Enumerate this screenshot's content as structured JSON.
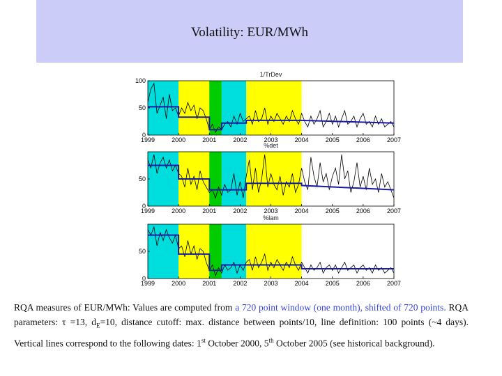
{
  "slide": {
    "title": "Volatility: EUR/MWh"
  },
  "chart_data": [
    {
      "type": "line",
      "title": "1/TrDev",
      "x_ticks": [
        "1999",
        "2000",
        "2001",
        "2002",
        "2003",
        "2004",
        "2005",
        "2006",
        "2007"
      ],
      "xlim": [
        1999,
        2007
      ],
      "ylim": [
        0,
        100
      ],
      "y_ticks": [
        "0",
        "50",
        "100"
      ],
      "periods": [
        {
          "start": 1999.0,
          "end": 2000.0,
          "color": "#00dddd"
        },
        {
          "start": 2000.0,
          "end": 2001.0,
          "color": "#ffff00"
        },
        {
          "start": 2001.0,
          "end": 2001.4,
          "color": "#00cc00"
        },
        {
          "start": 2001.4,
          "end": 2002.2,
          "color": "#00dddd"
        },
        {
          "start": 2002.2,
          "end": 2004.0,
          "color": "#ffff00"
        }
      ],
      "series": [
        {
          "name": "volatility",
          "x": [
            1999.0,
            1999.1,
            1999.2,
            1999.3,
            1999.4,
            1999.5,
            1999.6,
            1999.7,
            1999.8,
            1999.9,
            2000.0,
            2000.1,
            2000.2,
            2000.3,
            2000.4,
            2000.5,
            2000.6,
            2000.7,
            2000.8,
            2000.9,
            2001.0,
            2001.1,
            2001.2,
            2001.3,
            2001.4,
            2001.5,
            2001.6,
            2001.7,
            2001.8,
            2001.9,
            2002.0,
            2002.1,
            2002.2,
            2002.3,
            2002.4,
            2002.5,
            2002.6,
            2002.7,
            2002.8,
            2002.9,
            2003.0,
            2003.1,
            2003.2,
            2003.3,
            2003.4,
            2003.5,
            2003.6,
            2003.7,
            2003.8,
            2003.9,
            2004.0,
            2004.1,
            2004.2,
            2004.3,
            2004.4,
            2004.5,
            2004.6,
            2004.7,
            2004.8,
            2004.9,
            2005.0,
            2005.1,
            2005.2,
            2005.3,
            2005.4,
            2005.5,
            2005.6,
            2005.7,
            2005.8,
            2005.9,
            2006.0,
            2006.1,
            2006.2,
            2006.3,
            2006.4,
            2006.5,
            2006.6,
            2006.7,
            2006.8,
            2006.9,
            2007.0
          ],
          "y": [
            60,
            85,
            95,
            40,
            55,
            70,
            30,
            75,
            45,
            50,
            35,
            50,
            40,
            60,
            45,
            55,
            30,
            50,
            45,
            30,
            10,
            20,
            5,
            15,
            10,
            20,
            25,
            15,
            35,
            20,
            40,
            25,
            30,
            35,
            20,
            45,
            25,
            30,
            50,
            20,
            35,
            25,
            40,
            30,
            20,
            35,
            25,
            45,
            30,
            20,
            40,
            25,
            15,
            35,
            20,
            30,
            45,
            15,
            25,
            40,
            20,
            35,
            15,
            30,
            45,
            20,
            25,
            35,
            15,
            30,
            40,
            20,
            25,
            15,
            35,
            20,
            30,
            15,
            20,
            25,
            15
          ]
        },
        {
          "name": "average",
          "x": [
            1999.0,
            2000.0,
            2000.0,
            2001.0,
            2001.0,
            2001.4,
            2001.4,
            2002.2,
            2002.2,
            2004.0,
            2004.0,
            2007.0
          ],
          "y": [
            52,
            52,
            33,
            33,
            10,
            10,
            22,
            22,
            27,
            27,
            27,
            22
          ]
        }
      ]
    },
    {
      "type": "line",
      "title": "%det",
      "x_ticks": [
        "1999",
        "2000",
        "2001",
        "2002",
        "2003",
        "2004",
        "2005",
        "2006",
        "2007"
      ],
      "xlim": [
        1999,
        2007
      ],
      "ylim": [
        0,
        100
      ],
      "y_ticks": [
        "0",
        "50"
      ],
      "periods": [
        {
          "start": 1999.0,
          "end": 2000.0,
          "color": "#00dddd"
        },
        {
          "start": 2000.0,
          "end": 2001.0,
          "color": "#ffff00"
        },
        {
          "start": 2001.0,
          "end": 2001.4,
          "color": "#00cc00"
        },
        {
          "start": 2001.4,
          "end": 2002.2,
          "color": "#00dddd"
        },
        {
          "start": 2002.2,
          "end": 2004.0,
          "color": "#ffff00"
        }
      ],
      "series": [
        {
          "name": "volatility",
          "x": [
            1999.0,
            1999.1,
            1999.2,
            1999.3,
            1999.4,
            1999.5,
            1999.6,
            1999.7,
            1999.8,
            1999.9,
            2000.0,
            2000.1,
            2000.2,
            2000.3,
            2000.4,
            2000.5,
            2000.6,
            2000.7,
            2000.8,
            2000.9,
            2001.0,
            2001.1,
            2001.2,
            2001.3,
            2001.4,
            2001.5,
            2001.6,
            2001.7,
            2001.8,
            2001.9,
            2002.0,
            2002.1,
            2002.2,
            2002.3,
            2002.4,
            2002.5,
            2002.6,
            2002.7,
            2002.8,
            2002.9,
            2003.0,
            2003.1,
            2003.2,
            2003.3,
            2003.4,
            2003.5,
            2003.6,
            2003.7,
            2003.8,
            2003.9,
            2004.0,
            2004.1,
            2004.2,
            2004.3,
            2004.4,
            2004.5,
            2004.6,
            2004.7,
            2004.8,
            2004.9,
            2005.0,
            2005.1,
            2005.2,
            2005.3,
            2005.4,
            2005.5,
            2005.6,
            2005.7,
            2005.8,
            2005.9,
            2006.0,
            2006.1,
            2006.2,
            2006.3,
            2006.4,
            2006.5,
            2006.6,
            2006.7,
            2006.8,
            2006.9,
            2007.0
          ],
          "y": [
            85,
            70,
            95,
            60,
            80,
            90,
            70,
            85,
            65,
            75,
            60,
            55,
            35,
            70,
            40,
            55,
            30,
            65,
            45,
            35,
            25,
            30,
            15,
            35,
            20,
            40,
            25,
            30,
            60,
            20,
            45,
            15,
            55,
            85,
            30,
            70,
            25,
            50,
            95,
            35,
            60,
            40,
            30,
            55,
            20,
            45,
            35,
            60,
            25,
            40,
            70,
            45,
            30,
            90,
            55,
            35,
            80,
            45,
            60,
            30,
            55,
            70,
            40,
            95,
            50,
            65,
            25,
            45,
            80,
            35,
            55,
            30,
            70,
            40,
            50,
            25,
            60,
            35,
            45,
            30,
            15
          ]
        },
        {
          "name": "average",
          "x": [
            1999.0,
            2000.0,
            2000.0,
            2001.0,
            2001.0,
            2001.4,
            2001.4,
            2002.2,
            2002.2,
            2004.0,
            2004.0,
            2007.0
          ],
          "y": [
            75,
            75,
            50,
            50,
            30,
            30,
            30,
            30,
            42,
            42,
            38,
            30
          ]
        }
      ]
    },
    {
      "type": "line",
      "title": "%lam",
      "x_ticks": [
        "1999",
        "2000",
        "2001",
        "2002",
        "2003",
        "2004",
        "2005",
        "2006",
        "2007"
      ],
      "xlim": [
        1999,
        2007
      ],
      "ylim": [
        0,
        100
      ],
      "y_ticks": [
        "0",
        "50"
      ],
      "periods": [
        {
          "start": 1999.0,
          "end": 2000.0,
          "color": "#00dddd"
        },
        {
          "start": 2000.0,
          "end": 2001.0,
          "color": "#ffff00"
        },
        {
          "start": 2001.0,
          "end": 2001.4,
          "color": "#00cc00"
        },
        {
          "start": 2001.4,
          "end": 2002.2,
          "color": "#00dddd"
        },
        {
          "start": 2002.2,
          "end": 2004.0,
          "color": "#ffff00"
        }
      ],
      "series": [
        {
          "name": "volatility",
          "x": [
            1999.0,
            1999.1,
            1999.2,
            1999.3,
            1999.4,
            1999.5,
            1999.6,
            1999.7,
            1999.8,
            1999.9,
            2000.0,
            2000.1,
            2000.2,
            2000.3,
            2000.4,
            2000.5,
            2000.6,
            2000.7,
            2000.8,
            2000.9,
            2001.0,
            2001.1,
            2001.2,
            2001.3,
            2001.4,
            2001.5,
            2001.6,
            2001.7,
            2001.8,
            2001.9,
            2002.0,
            2002.1,
            2002.2,
            2002.3,
            2002.4,
            2002.5,
            2002.6,
            2002.7,
            2002.8,
            2002.9,
            2003.0,
            2003.1,
            2003.2,
            2003.3,
            2003.4,
            2003.5,
            2003.6,
            2003.7,
            2003.8,
            2003.9,
            2004.0,
            2004.1,
            2004.2,
            2004.3,
            2004.4,
            2004.5,
            2004.6,
            2004.7,
            2004.8,
            2004.9,
            2005.0,
            2005.1,
            2005.2,
            2005.3,
            2005.4,
            2005.5,
            2005.6,
            2005.7,
            2005.8,
            2005.9,
            2006.0,
            2006.1,
            2006.2,
            2006.3,
            2006.4,
            2006.5,
            2006.6,
            2006.7,
            2006.8,
            2006.9,
            2007.0
          ],
          "y": [
            90,
            80,
            95,
            60,
            85,
            70,
            90,
            75,
            65,
            80,
            55,
            60,
            40,
            70,
            45,
            60,
            35,
            55,
            50,
            30,
            15,
            25,
            5,
            20,
            10,
            25,
            15,
            20,
            30,
            10,
            25,
            15,
            30,
            35,
            15,
            40,
            20,
            30,
            45,
            15,
            30,
            20,
            35,
            25,
            15,
            30,
            20,
            40,
            25,
            15,
            30,
            20,
            10,
            25,
            15,
            20,
            30,
            10,
            20,
            25,
            15,
            25,
            10,
            20,
            30,
            15,
            20,
            25,
            10,
            20,
            25,
            15,
            20,
            10,
            25,
            15,
            20,
            10,
            15,
            20,
            10
          ]
        },
        {
          "name": "average",
          "x": [
            1999.0,
            2000.0,
            2000.0,
            2001.0,
            2001.0,
            2001.4,
            2001.4,
            2002.2,
            2002.2,
            2004.0,
            2004.0,
            2007.0
          ],
          "y": [
            80,
            80,
            45,
            45,
            15,
            15,
            25,
            25,
            25,
            25,
            18,
            18
          ]
        }
      ]
    }
  ],
  "caption": {
    "line1_a": "RQA measures of EUR/MWh: Values are computed from ",
    "line1_b": "a 720 point window (one month), shifted of 720 points.",
    "line1_c": " RQA parameters: ",
    "tau": "τ",
    "params": " =13, d",
    "sub_e": "E",
    "rest1": "=10, distance cutoff: max. distance between points/10, line definition: 100 points (~4 days). Vertical lines correspond to the following dates: 1",
    "sup_st": "st",
    "rest2": " October 2000, 5",
    "sup_th": "th",
    "rest3": " October 2005 (see historical background)."
  }
}
